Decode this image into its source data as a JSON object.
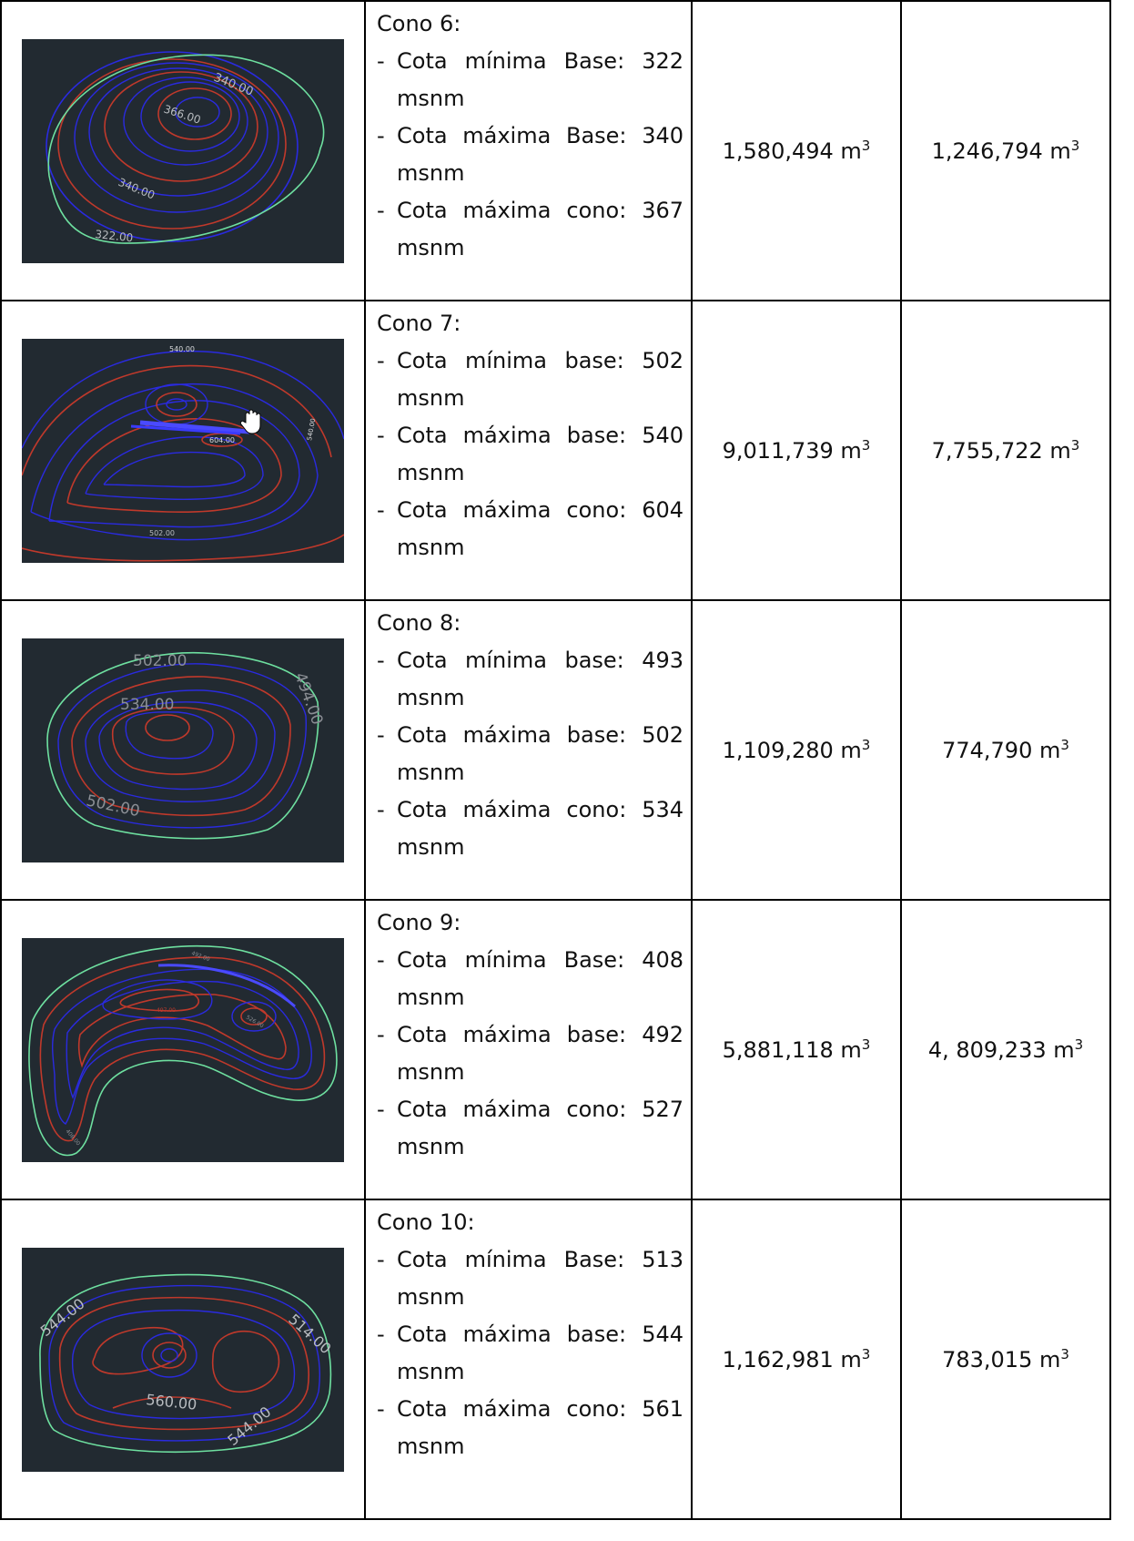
{
  "rows": [
    {
      "title": "Cono 6:",
      "lines": [
        {
          "text": "Cota mínima Base: 322",
          "unit": "msnm"
        },
        {
          "text": "Cota máxima Base: 340",
          "unit": "msnm"
        },
        {
          "text": "Cota máxima cono: 367",
          "unit": "msnm"
        }
      ],
      "vol1": "1,580,494 m",
      "vol2": "1,246,794 m",
      "exp": "3",
      "map_labels": [
        "340.00",
        "366.00",
        "340.00",
        "322.00"
      ]
    },
    {
      "title": "Cono 7:",
      "lines": [
        {
          "text": "Cota mínima base: 502",
          "unit": "msnm"
        },
        {
          "text": "Cota máxima base: 540",
          "unit": "msnm"
        },
        {
          "text": "Cota máxima cono: 604",
          "unit": "msnm"
        }
      ],
      "vol1": "9,011,739 m",
      "vol2": "7,755,722 m",
      "exp": "3",
      "map_labels": [
        "540.00",
        "604.00",
        "540.00",
        "502.00"
      ]
    },
    {
      "title": "Cono 8:",
      "lines": [
        {
          "text": "Cota mínima base: 493",
          "unit": "msnm"
        },
        {
          "text": "Cota máxima base: 502",
          "unit": "msnm"
        },
        {
          "text": "Cota máxima cono: 534",
          "unit": "msnm"
        }
      ],
      "vol1": "1,109,280 m",
      "vol2": "774,790 m",
      "exp": "3",
      "map_labels": [
        "502.00",
        "534.00",
        "494.00",
        "502.00"
      ]
    },
    {
      "title": "Cono 9:",
      "lines": [
        {
          "text": "Cota mínima Base: 408",
          "unit": "msnm"
        },
        {
          "text": "Cota máxima base: 492",
          "unit": "msnm"
        },
        {
          "text": "Cota máxima cono: 527",
          "unit": "msnm"
        }
      ],
      "vol1": "5,881,118 m",
      "vol2": "4, 809,233 m",
      "exp": "3",
      "map_labels": [
        "492.00",
        "497.00",
        "526.00",
        "408.00"
      ]
    },
    {
      "title": "Cono 10:",
      "lines": [
        {
          "text": "Cota mínima Base: 513",
          "unit": "msnm"
        },
        {
          "text": "Cota máxima base: 544",
          "unit": "msnm"
        },
        {
          "text": "Cota máxima cono: 561",
          "unit": "msnm"
        }
      ],
      "vol1": "1,162,981 m",
      "vol2": "783,015 m",
      "exp": "3",
      "map_labels": [
        "544.00",
        "514.00",
        "560.00",
        "544.00"
      ]
    }
  ],
  "colors": {
    "map_bg": "#222a31",
    "contour_blue": "#2a2ae0",
    "contour_red": "#c0392b",
    "outline_green": "#6ee0a0",
    "label": "#b8bcc0"
  }
}
